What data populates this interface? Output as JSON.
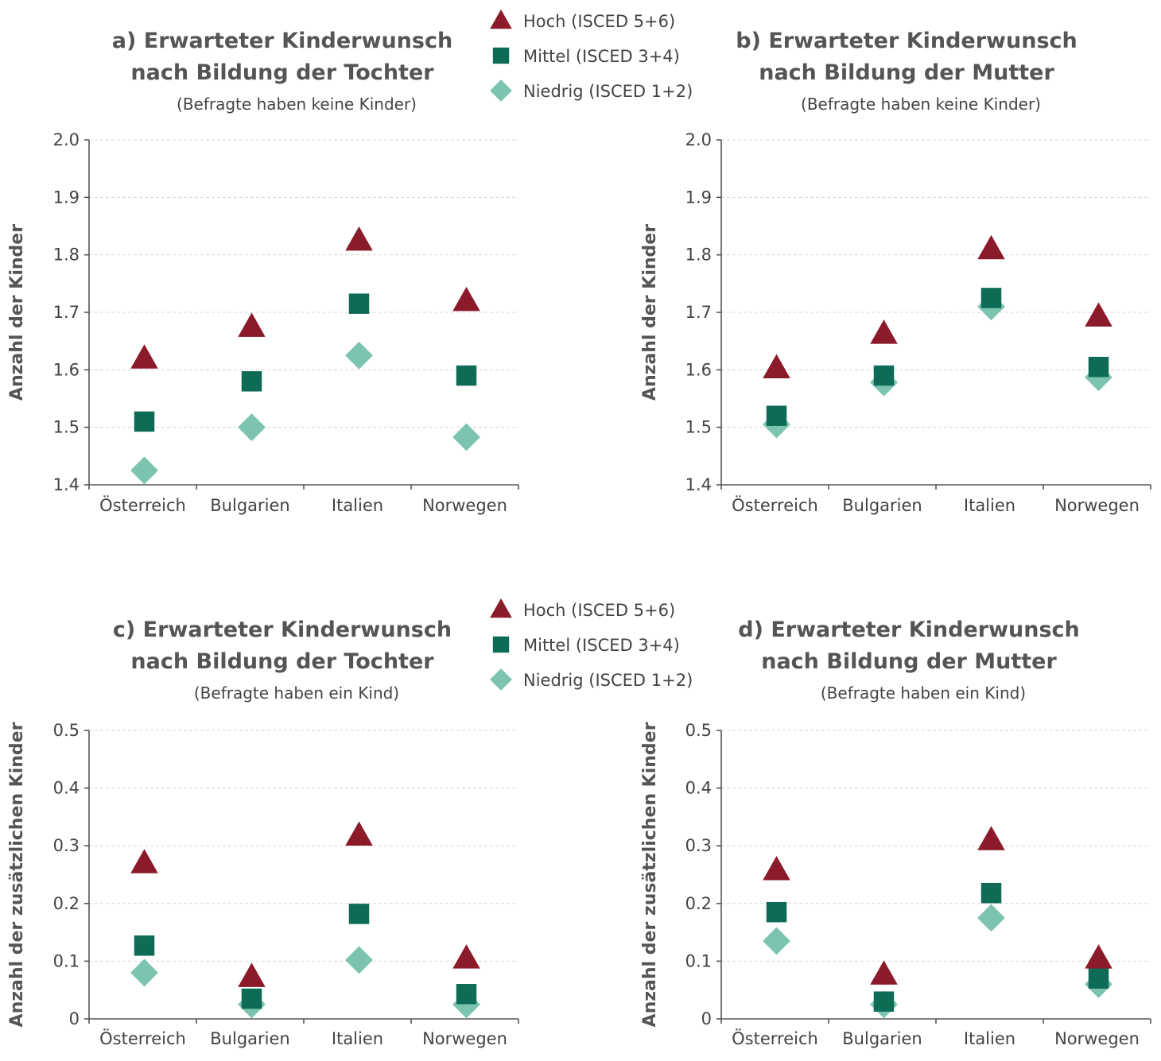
{
  "colors": {
    "hoch": "#8b1a2b",
    "mittel": "#0e6b56",
    "niedrig": "#7cc4b0"
  },
  "legends": [
    {
      "entries": [
        {
          "key": "hoch",
          "shape": "triangle",
          "label": "Hoch (ISCED 5+6)"
        },
        {
          "key": "mittel",
          "shape": "square",
          "label": "Mittel (ISCED 3+4)"
        },
        {
          "key": "niedrig",
          "shape": "diamond",
          "label": "Niedrig (ISCED 1+2)"
        }
      ]
    },
    {
      "entries": [
        {
          "key": "hoch",
          "shape": "triangle",
          "label": "Hoch (ISCED 5+6)"
        },
        {
          "key": "mittel",
          "shape": "square",
          "label": "Mittel (ISCED 3+4)"
        },
        {
          "key": "niedrig",
          "shape": "diamond",
          "label": "Niedrig (ISCED 1+2)"
        }
      ]
    }
  ],
  "chart_data": [
    {
      "type": "scatter",
      "title_lines": [
        "a) Erwarteter Kinderwunsch",
        "nach Bildung der Tochter"
      ],
      "subtitle": "(Befragte haben keine Kinder)",
      "ylabel": "Anzahl der Kinder",
      "ylim": [
        1.4,
        2.0
      ],
      "yticks": [
        "1.4",
        "1.5",
        "1.6",
        "1.7",
        "1.8",
        "1.9",
        "2.0"
      ],
      "categories": [
        "Österreich",
        "Bulgarien",
        "Italien",
        "Norwegen"
      ],
      "series": [
        {
          "key": "hoch",
          "shape": "triangle",
          "values": [
            1.62,
            1.675,
            1.825,
            1.72
          ]
        },
        {
          "key": "mittel",
          "shape": "square",
          "values": [
            1.51,
            1.58,
            1.715,
            1.59
          ]
        },
        {
          "key": "niedrig",
          "shape": "diamond",
          "values": [
            1.425,
            1.5,
            1.625,
            1.483
          ]
        }
      ]
    },
    {
      "type": "scatter",
      "title_lines": [
        "b) Erwarteter Kinderwunsch",
        "nach Bildung der Mutter"
      ],
      "subtitle": "(Befragte haben keine Kinder)",
      "ylabel": "Anzahl der Kinder",
      "ylim": [
        1.4,
        2.0
      ],
      "yticks": [
        "1.4",
        "1.5",
        "1.6",
        "1.7",
        "1.8",
        "1.9",
        "2.0"
      ],
      "categories": [
        "Österreich",
        "Bulgarien",
        "Italien",
        "Norwegen"
      ],
      "series": [
        {
          "key": "hoch",
          "shape": "triangle",
          "values": [
            1.603,
            1.663,
            1.81,
            1.693
          ]
        },
        {
          "key": "mittel",
          "shape": "square",
          "values": [
            1.52,
            1.59,
            1.725,
            1.605
          ]
        },
        {
          "key": "niedrig",
          "shape": "diamond",
          "values": [
            1.505,
            1.578,
            1.71,
            1.587
          ]
        }
      ]
    },
    {
      "type": "scatter",
      "title_lines": [
        "c) Erwarteter Kinderwunsch",
        "nach Bildung der Tochter"
      ],
      "subtitle": "(Befragte haben ein Kind)",
      "ylabel": "Anzahl der zusätzlichen Kinder",
      "ylim": [
        0,
        0.5
      ],
      "yticks": [
        "0",
        "0.1",
        "0.2",
        "0.3",
        "0.4",
        "0.5"
      ],
      "categories": [
        "Österreich",
        "Bulgarien",
        "Italien",
        "Norwegen"
      ],
      "series": [
        {
          "key": "hoch",
          "shape": "triangle",
          "values": [
            0.27,
            0.073,
            0.318,
            0.105
          ]
        },
        {
          "key": "mittel",
          "shape": "square",
          "values": [
            0.127,
            0.035,
            0.182,
            0.043
          ]
        },
        {
          "key": "niedrig",
          "shape": "diamond",
          "values": [
            0.08,
            0.025,
            0.102,
            0.025
          ]
        }
      ]
    },
    {
      "type": "scatter",
      "title_lines": [
        "d) Erwarteter Kinderwunsch",
        "nach Bildung der Mutter"
      ],
      "subtitle": "(Befragte haben ein Kind)",
      "ylabel": "Anzahl der zusätzlichen Kinder",
      "ylim": [
        0,
        0.5
      ],
      "yticks": [
        "0",
        "0.1",
        "0.2",
        "0.3",
        "0.4",
        "0.5"
      ],
      "categories": [
        "Österreich",
        "Bulgarien",
        "Italien",
        "Norwegen"
      ],
      "series": [
        {
          "key": "hoch",
          "shape": "triangle",
          "values": [
            0.258,
            0.077,
            0.31,
            0.105
          ]
        },
        {
          "key": "mittel",
          "shape": "square",
          "values": [
            0.185,
            0.03,
            0.218,
            0.07
          ]
        },
        {
          "key": "niedrig",
          "shape": "diamond",
          "values": [
            0.135,
            0.025,
            0.175,
            0.06
          ]
        }
      ]
    }
  ]
}
